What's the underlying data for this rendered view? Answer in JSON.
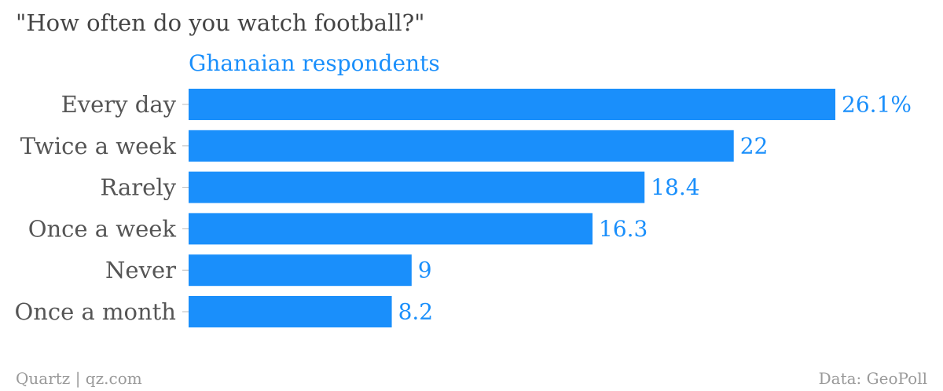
{
  "title": "\"How often do you watch football?\"",
  "footer": {
    "source_left": "Quartz | qz.com",
    "source_right": "Data: GeoPoll"
  },
  "colors": {
    "bar": "#1a8ffb",
    "value_text": "#1a8ffb",
    "category_text": "#555555",
    "title_text": "#444444",
    "footer_text": "#9a9a9a"
  },
  "chart_data": {
    "type": "bar",
    "orientation": "horizontal",
    "title": "\"How often do you watch football?\"",
    "categories": [
      "Every day",
      "Twice a week",
      "Rarely",
      "Once a week",
      "Never",
      "Once a month"
    ],
    "series": [
      {
        "name": "Ghanaian respondents",
        "values": [
          26.1,
          22,
          18.4,
          16.3,
          9,
          8.2
        ],
        "value_labels": [
          "26.1%",
          "22",
          "18.4",
          "16.3",
          "9",
          "8.2"
        ]
      }
    ],
    "xlim": [
      0,
      26.1
    ],
    "grid": false,
    "legend": "none"
  }
}
